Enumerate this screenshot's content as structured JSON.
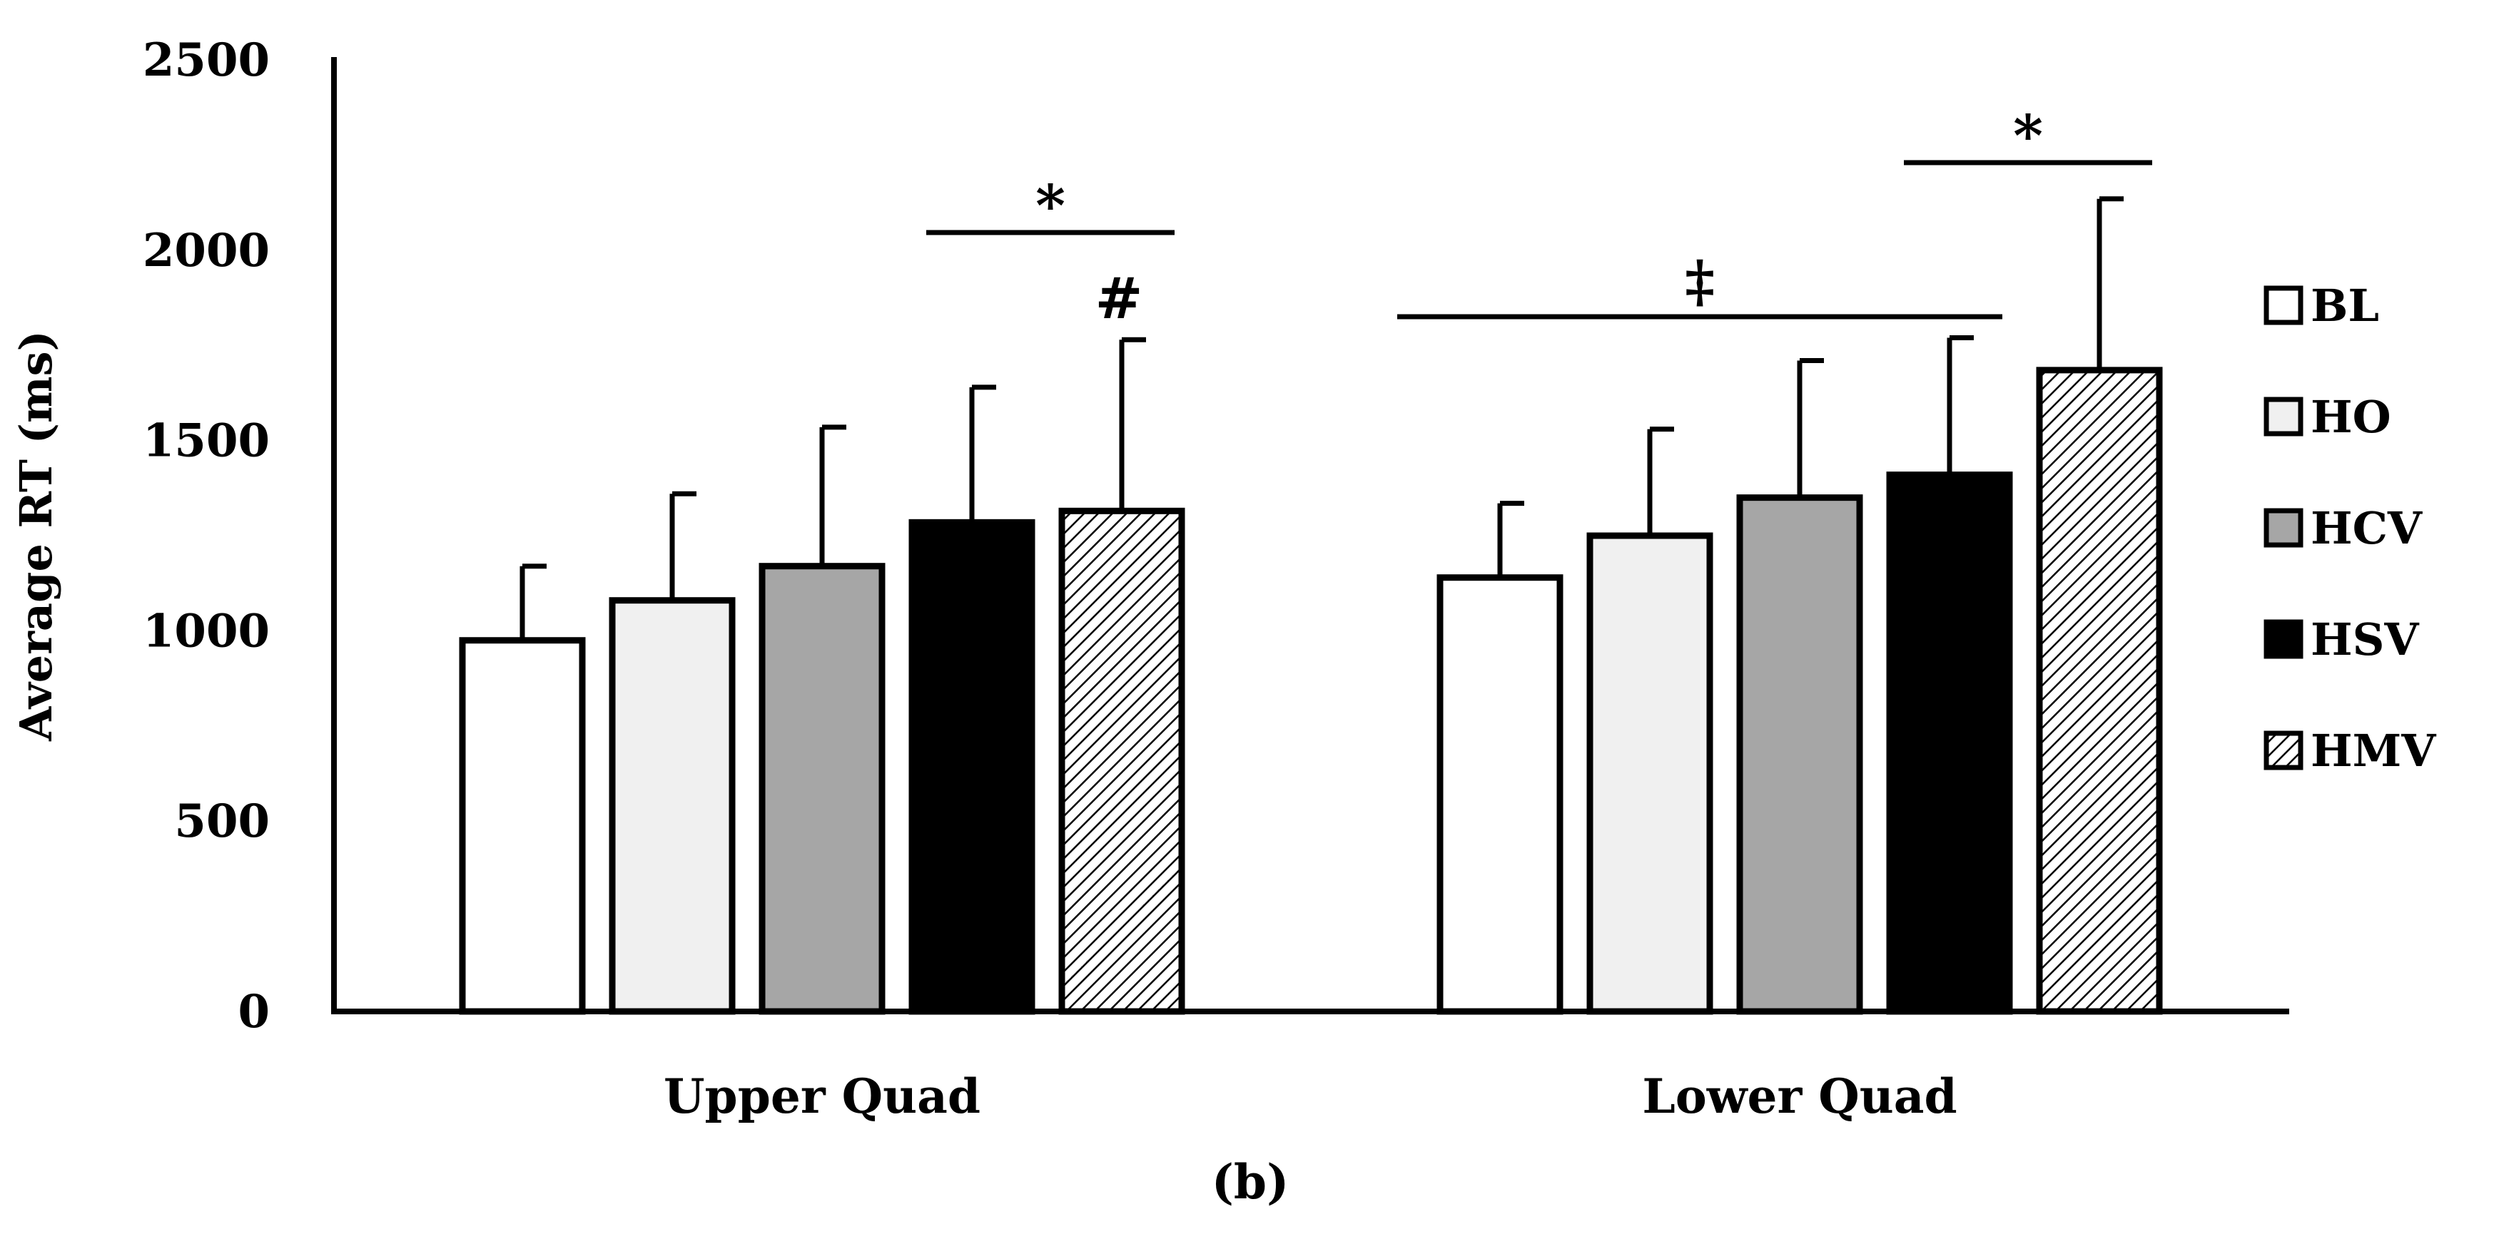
{
  "chart_data": {
    "type": "bar",
    "title": "",
    "xlabel": "",
    "ylabel": "Average RT (ms)",
    "ylim": [
      0,
      2500
    ],
    "yticks": [
      0,
      500,
      1000,
      1500,
      2000,
      2500
    ],
    "grid": false,
    "legend_position": "right",
    "categories": [
      "Upper Quad",
      "Lower Quad"
    ],
    "series": [
      {
        "name": "BL",
        "fill": "#ffffff",
        "pattern": "none",
        "values": [
          975,
          1140
        ],
        "errors": [
          195,
          195
        ]
      },
      {
        "name": "HO",
        "fill": "#f0f0f0",
        "pattern": "none",
        "values": [
          1080,
          1250
        ],
        "errors": [
          280,
          280
        ]
      },
      {
        "name": "HCV",
        "fill": "#a6a6a6",
        "pattern": "none",
        "values": [
          1170,
          1350
        ],
        "errors": [
          365,
          360
        ]
      },
      {
        "name": "HSV",
        "fill": "#000000",
        "pattern": "none",
        "values": [
          1285,
          1410
        ],
        "errors": [
          355,
          360
        ]
      },
      {
        "name": "HMV",
        "fill": "#ffffff",
        "pattern": "hatch",
        "values": [
          1315,
          1685
        ],
        "errors": [
          450,
          450
        ]
      }
    ],
    "annotations": [
      {
        "text": "*",
        "category": "Upper Quad",
        "from_series": "HSV",
        "to_series": "HMV",
        "bracket": true
      },
      {
        "text": "#",
        "category": "Upper Quad",
        "series": "HMV",
        "bracket": false
      },
      {
        "text": "‡",
        "category": "Lower Quad",
        "from_series": "BL",
        "to_series": "HSV",
        "bracket": true
      },
      {
        "text": "*",
        "category": "Lower Quad",
        "from_series": "HSV",
        "to_series": "HMV",
        "bracket": true
      }
    ]
  },
  "caption": {
    "prefix": "(",
    "letter": "b",
    "suffix": ")"
  }
}
